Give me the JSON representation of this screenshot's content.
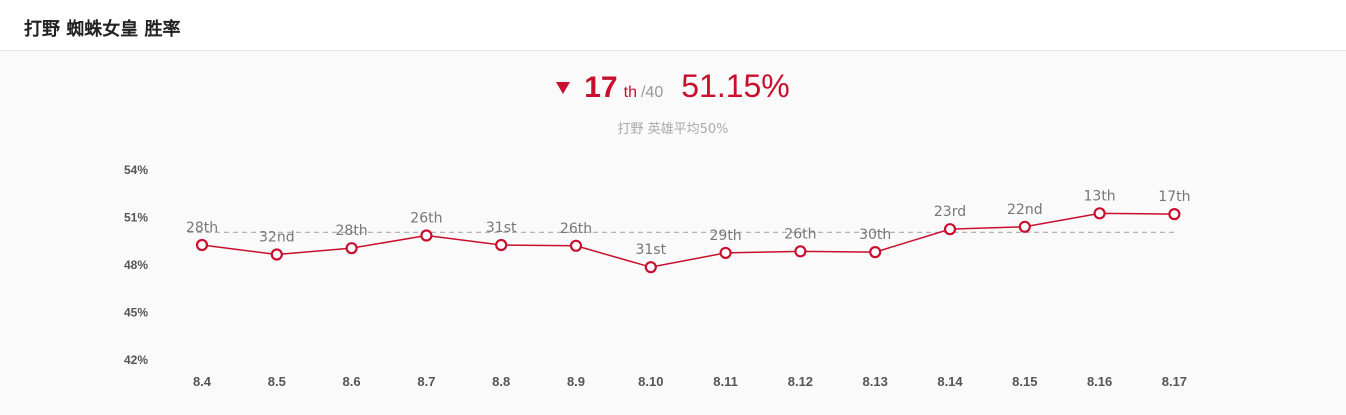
{
  "header": {
    "title": "打野 蜘蛛女皇 胜率"
  },
  "summary": {
    "trend": "down",
    "rank": "17",
    "rank_suffix": "th",
    "rank_total": "/40",
    "winrate": "51.15%",
    "subtitle": "打野 英雄平均50%"
  },
  "colors": {
    "accent": "#c8102e",
    "reference_line": "#aaaaaa",
    "text_muted": "#999999"
  },
  "chart_data": {
    "type": "line",
    "title": "打野 蜘蛛女皇 胜率",
    "x": [
      "8.4",
      "8.5",
      "8.6",
      "8.7",
      "8.8",
      "8.9",
      "8.10",
      "8.11",
      "8.12",
      "8.13",
      "8.14",
      "8.15",
      "8.16",
      "8.17"
    ],
    "series": [
      {
        "name": "胜率",
        "values": [
          49.2,
          48.6,
          49.0,
          49.8,
          49.2,
          49.15,
          47.8,
          48.7,
          48.8,
          48.75,
          50.2,
          50.35,
          51.2,
          51.15
        ],
        "labels": [
          "28th",
          "32nd",
          "28th",
          "26th",
          "31st",
          "26th",
          "31st",
          "29th",
          "26th",
          "30th",
          "23rd",
          "22nd",
          "13th",
          "17th"
        ]
      }
    ],
    "reference_line": {
      "value": 50,
      "label": "英雄平均50%"
    },
    "yticks": [
      "54%",
      "51%",
      "48%",
      "45%",
      "42%"
    ],
    "ytick_values": [
      54,
      51,
      48,
      45,
      42
    ],
    "ylim": [
      42,
      54
    ],
    "xlabel": "",
    "ylabel": "",
    "grid": false
  }
}
